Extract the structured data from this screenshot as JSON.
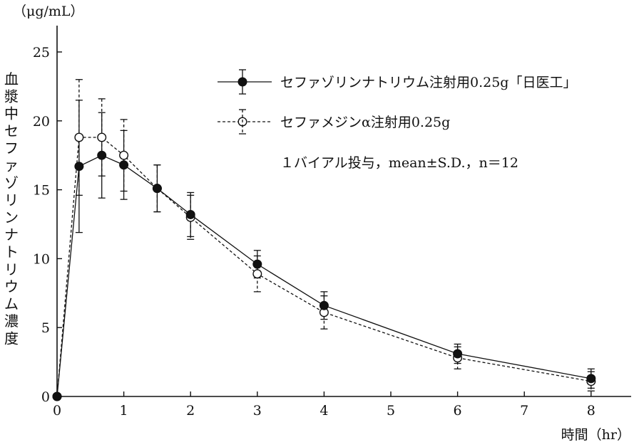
{
  "chart_data": {
    "type": "line",
    "unit_label": "（μg/mL）",
    "ylabel": "血漿中セファゾリンナトリウム濃度",
    "xlabel": "時間（hr）",
    "xlim": [
      0,
      8.6
    ],
    "ylim": [
      0,
      25
    ],
    "xticks": [
      0,
      1,
      2,
      3,
      4,
      5,
      6,
      7,
      8
    ],
    "yticks": [
      0,
      5,
      10,
      15,
      20,
      25
    ],
    "annotation": "１バイアル投与，mean±S.D.，n＝12",
    "series": [
      {
        "name": "セファゾリンナトリウム注射用0.25g「日医工」",
        "marker": "filled-circle",
        "line": "solid",
        "color": "#111111",
        "x": [
          0,
          0.33,
          0.67,
          1,
          1.5,
          2,
          3,
          4,
          6,
          8
        ],
        "y": [
          0,
          16.7,
          17.5,
          16.8,
          15.1,
          13.2,
          9.6,
          6.6,
          3.1,
          1.3
        ],
        "sd": [
          0,
          4.8,
          3.1,
          2.5,
          1.7,
          1.6,
          1.0,
          1.0,
          0.7,
          0.7
        ]
      },
      {
        "name": "セファメジンα注射用0.25g",
        "marker": "open-circle",
        "line": "dashed",
        "color": "#111111",
        "x": [
          0,
          0.33,
          0.67,
          1,
          1.5,
          2,
          3,
          4,
          6,
          8
        ],
        "y": [
          0,
          18.8,
          18.8,
          17.5,
          15.1,
          13.0,
          8.9,
          6.1,
          2.8,
          1.1
        ],
        "sd": [
          0,
          4.2,
          2.8,
          2.6,
          1.7,
          1.6,
          1.3,
          1.2,
          0.8,
          0.7
        ]
      }
    ]
  }
}
